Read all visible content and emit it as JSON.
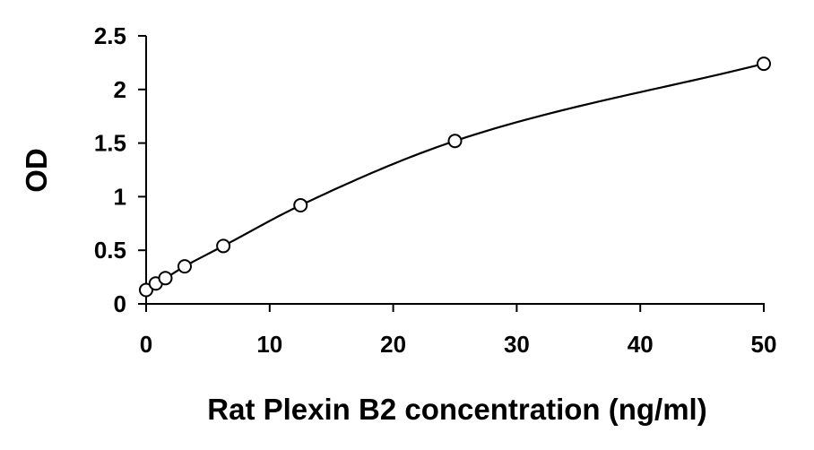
{
  "chart_data": {
    "type": "scatter",
    "title": "",
    "xlabel": "Rat Plexin B2 concentration (ng/ml)",
    "ylabel": "OD",
    "xlim": [
      0,
      50
    ],
    "ylim": [
      0,
      2.5
    ],
    "x_ticks": [
      "0",
      "10",
      "20",
      "30",
      "40",
      "50"
    ],
    "y_ticks": [
      "0",
      "0.5",
      "1",
      "1.5",
      "2",
      "2.5"
    ],
    "grid": false,
    "legend": "none",
    "series": [
      {
        "marker": "open-circle",
        "x": [
          0,
          0.78,
          1.56,
          3.12,
          6.25,
          12.5,
          25,
          50
        ],
        "y": [
          0.13,
          0.19,
          0.24,
          0.35,
          0.54,
          0.92,
          1.52,
          2.24
        ]
      }
    ],
    "fit_curve": "smooth"
  }
}
